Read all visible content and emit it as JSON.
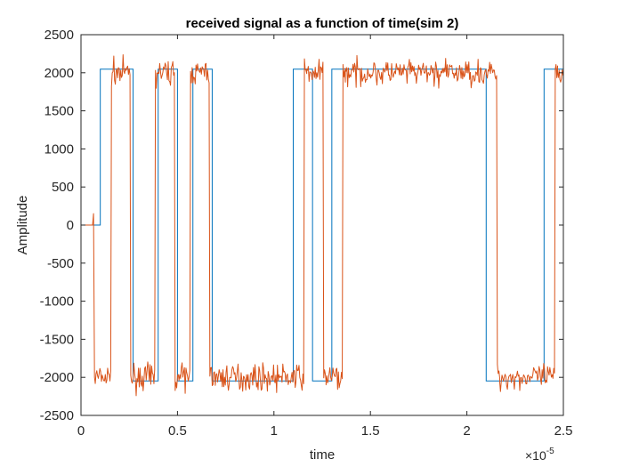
{
  "chart_data": {
    "type": "line",
    "title": "received signal as a function of time(sim 2)",
    "xlabel": "time",
    "ylabel": "Amplitude",
    "xlim": [
      0,
      2.5e-05
    ],
    "ylim": [
      -2500,
      2500
    ],
    "x_tick_labels": [
      "0",
      "0.5",
      "1",
      "1.5",
      "2",
      "2.5"
    ],
    "x_tick_values": [
      0,
      5e-06,
      1e-05,
      1.5e-05,
      2e-05,
      2.5e-05
    ],
    "x_exponent_base": "×10",
    "x_exponent_power": "-5",
    "y_tick_labels": [
      "2500",
      "2000",
      "1500",
      "1000",
      "500",
      "0",
      "-500",
      "-1000",
      "-1500",
      "-2000",
      "-2500"
    ],
    "y_tick_values": [
      2500,
      2000,
      1500,
      1000,
      500,
      0,
      -500,
      -1000,
      -1500,
      -2000,
      -2500
    ],
    "grid": false,
    "series": [
      {
        "color": "#0072BD",
        "style": "step",
        "amplitude": 2048,
        "x": [
          0,
          1e-06,
          1.7e-06,
          2.7e-06,
          4e-06,
          5e-06,
          5.8e-06,
          6.8e-06,
          1.1e-05,
          1.2e-05,
          1.3e-05,
          2.1e-05,
          2.4e-05,
          2.5e-05
        ],
        "values": [
          0,
          2048,
          2048,
          -2048,
          2048,
          -2048,
          2048,
          -2048,
          2048,
          -2048,
          2048,
          -2048,
          2048,
          2048
        ]
      },
      {
        "color": "#D95319",
        "style": "noisy",
        "nominal_amplitude": 2000,
        "noise_band": 150,
        "x": [
          0,
          6e-07,
          6.5e-07,
          7e-07,
          1.7e-06,
          2.7e-06,
          4e-06,
          5e-06,
          5.8e-06,
          6.8e-06,
          7.7e-06,
          1.17e-05,
          1.27e-05,
          1.37e-05,
          2.17e-05,
          2.47e-05,
          2.5e-05
        ],
        "values": [
          0,
          0,
          150,
          -2000,
          2000,
          -2000,
          2000,
          -2000,
          2000,
          -2000,
          -2000,
          2000,
          -2000,
          2000,
          -2000,
          2000,
          2000
        ]
      }
    ]
  }
}
